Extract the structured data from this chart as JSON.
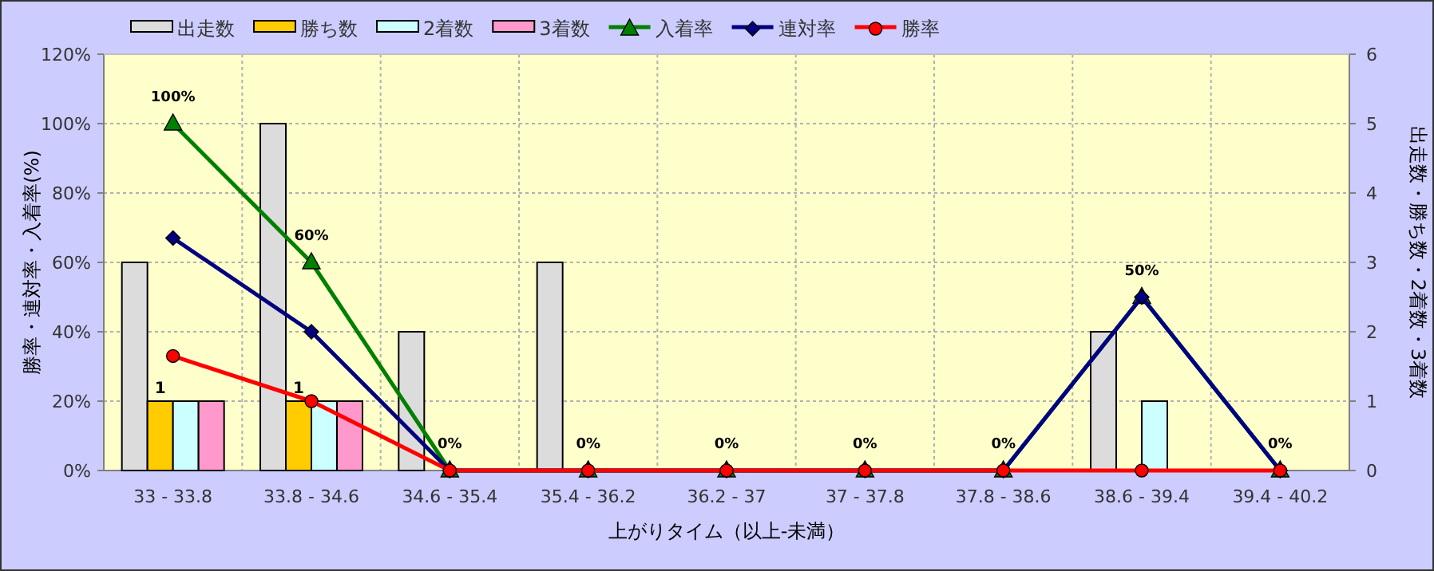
{
  "chart_data": {
    "type": "bar",
    "xlabel": "上がりタイム（以上-未満）",
    "ylabel": "勝率・連対率・入着率(%)",
    "y2label": "出走数・勝ち数・2着数・3着数",
    "categories": [
      "33 - 33.8",
      "33.8 - 34.6",
      "34.6 - 35.4",
      "35.4 - 36.2",
      "36.2 - 37",
      "37 - 37.8",
      "37.8 - 38.6",
      "38.6 - 39.4",
      "39.4 - 40.2"
    ],
    "series": [
      {
        "name": "出走数",
        "axis": "y2",
        "color": "#dcdcdc",
        "values": [
          3,
          5,
          2,
          3,
          0,
          0,
          0,
          2,
          0
        ]
      },
      {
        "name": "勝ち数",
        "axis": "y2",
        "color": "#ffcc00",
        "values": [
          1,
          1,
          0,
          0,
          0,
          0,
          0,
          0,
          0
        ],
        "value_labels": [
          "1",
          "1",
          null,
          null,
          null,
          null,
          null,
          null,
          null
        ]
      },
      {
        "name": "2着数",
        "axis": "y2",
        "color": "#ccffff",
        "values": [
          1,
          1,
          0,
          0,
          0,
          0,
          0,
          1,
          0
        ]
      },
      {
        "name": "3着数",
        "axis": "y2",
        "color": "#ff99cc",
        "values": [
          1,
          1,
          0,
          0,
          0,
          0,
          0,
          0,
          0
        ]
      },
      {
        "name": "入着率",
        "type": "line",
        "marker": "triangle",
        "color": "#008000",
        "values": [
          100,
          60,
          0,
          0,
          0,
          0,
          0,
          50,
          0
        ],
        "value_labels": [
          "100%",
          "60%",
          "0%",
          "0%",
          "0%",
          "0%",
          "0%",
          "50%",
          "0%"
        ]
      },
      {
        "name": "連対率",
        "type": "line",
        "marker": "diamond",
        "color": "#000080",
        "values": [
          67,
          40,
          0,
          0,
          0,
          0,
          0,
          50,
          0
        ]
      },
      {
        "name": "勝率",
        "type": "line",
        "marker": "circle",
        "color": "#ff0000",
        "values": [
          33,
          20,
          0,
          0,
          0,
          0,
          0,
          0,
          0
        ]
      }
    ],
    "ylim": [
      0,
      120
    ],
    "yticks": [
      {
        "value": 0,
        "label": "0%"
      },
      {
        "value": 20,
        "label": "20%"
      },
      {
        "value": 40,
        "label": "40%"
      },
      {
        "value": 60,
        "label": "60%"
      },
      {
        "value": 80,
        "label": "80%"
      },
      {
        "value": 100,
        "label": "100%"
      },
      {
        "value": 120,
        "label": "120%"
      }
    ],
    "y2lim": [
      0,
      6
    ],
    "y2ticks": [
      0,
      1,
      2,
      3,
      4,
      5,
      6
    ],
    "grid": true,
    "legend": "top"
  }
}
